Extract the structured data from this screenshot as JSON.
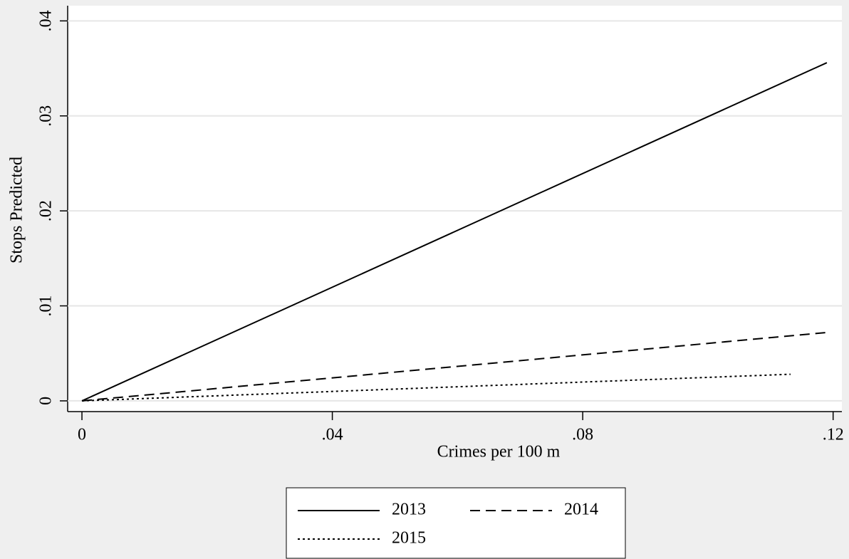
{
  "chart_data": {
    "type": "line",
    "x_label": "Crimes per 100 m",
    "y_label": "Stops Predicted",
    "xlim": [
      -0.00228,
      0.1214
    ],
    "ylim": [
      -0.00113,
      0.0416
    ],
    "xticks": [
      0,
      {
        "value": 0.04,
        "label": ".04"
      },
      {
        "value": 0.08,
        "label": ".08"
      },
      {
        "value": 0.12,
        "label": ".12"
      }
    ],
    "yticks": [
      0,
      {
        "value": 0.01,
        "label": ".01"
      },
      {
        "value": 0.02,
        "label": ".02"
      },
      {
        "value": 0.03,
        "label": ".03"
      },
      {
        "value": 0.04,
        "label": ".04"
      }
    ],
    "grid": true,
    "legend": "bottom",
    "series": [
      {
        "name": "2013",
        "color": "#000000",
        "dash": "solid",
        "x": [
          0,
          0.119
        ],
        "values": [
          0,
          0.0356
        ]
      },
      {
        "name": "2014",
        "color": "#000000",
        "dash": "dashed",
        "x": [
          0,
          0.119
        ],
        "values": [
          0,
          0.0072
        ]
      },
      {
        "name": "2015",
        "color": "#000000",
        "dash": "dotted",
        "x": [
          0,
          0.1132
        ],
        "values": [
          0,
          0.0028
        ]
      }
    ]
  }
}
